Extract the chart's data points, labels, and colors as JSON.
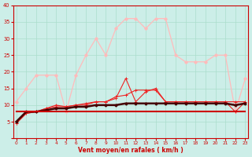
{
  "x": [
    0,
    1,
    2,
    3,
    4,
    5,
    6,
    7,
    8,
    9,
    10,
    11,
    12,
    13,
    14,
    15,
    16,
    17,
    18,
    19,
    20,
    21,
    22,
    23
  ],
  "line_rafales_pink": [
    11,
    15,
    19,
    19,
    19,
    8,
    19,
    25,
    30,
    25,
    33,
    36,
    36,
    33,
    36,
    36,
    25,
    23,
    23,
    23,
    25,
    25,
    8,
    18
  ],
  "line_moyen_pink": [
    4.5,
    8,
    8,
    8,
    8,
    8,
    8,
    8,
    8,
    8,
    8,
    8,
    8,
    8,
    8,
    8,
    8,
    8,
    8,
    8,
    8,
    8,
    8,
    8
  ],
  "line_mid_red": [
    4.5,
    7.5,
    8,
    9,
    10,
    9.5,
    10,
    10,
    11,
    11,
    12,
    18,
    11,
    14,
    15,
    11,
    11,
    11,
    11,
    11,
    11,
    11,
    8,
    11
  ],
  "line_cross_red": [
    4.5,
    7.5,
    8,
    9,
    9.5,
    9.5,
    10,
    10.5,
    11,
    11,
    12.5,
    13,
    14.5,
    14.5,
    14.5,
    11,
    11,
    11,
    11,
    11,
    11,
    11,
    11,
    11
  ],
  "line_thick_dark": [
    5,
    8,
    8,
    8.5,
    9,
    9,
    9.5,
    9.5,
    10,
    10,
    10,
    10.5,
    10.5,
    10.5,
    10.5,
    10.5,
    10.5,
    10.5,
    10.5,
    10.5,
    10.5,
    10.5,
    10,
    10.5
  ],
  "line_flat_red": [
    8,
    8,
    8,
    8,
    8,
    8,
    8,
    8,
    8,
    8,
    8,
    8,
    8,
    8,
    8,
    8,
    8,
    8,
    8,
    8,
    8,
    8,
    8,
    8
  ],
  "xlim": [
    0,
    23
  ],
  "ylim": [
    0,
    40
  ],
  "yticks": [
    0,
    5,
    10,
    15,
    20,
    25,
    30,
    35,
    40
  ],
  "xticks": [
    0,
    1,
    2,
    3,
    4,
    5,
    6,
    7,
    8,
    9,
    10,
    11,
    12,
    13,
    14,
    15,
    16,
    17,
    18,
    19,
    20,
    21,
    22,
    23
  ],
  "xlabel": "Vent moyen/en rafales ( km/h )",
  "background_color": "#cceee8",
  "grid_color": "#aaddcc",
  "color_light_pink": "#ffbbbb",
  "color_red": "#ee2222",
  "color_dark_red": "#cc0000",
  "color_dark": "#440000",
  "axis_color": "#cc0000",
  "tick_color": "#cc0000",
  "label_color": "#cc0000"
}
